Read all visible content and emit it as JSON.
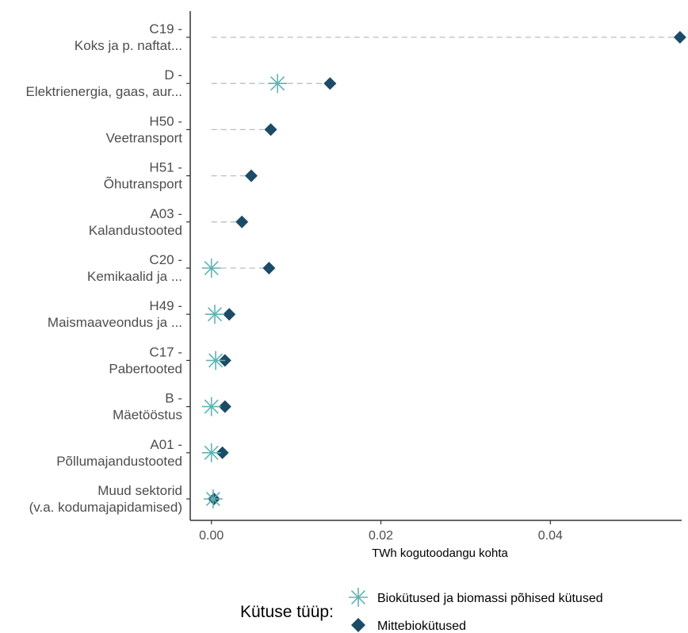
{
  "chart_data": {
    "type": "scatter",
    "xlabel": "TWh kogutoodangu kohta",
    "xlim": [
      -0.0025,
      0.0555
    ],
    "xticks": [
      0.0,
      0.02,
      0.04
    ],
    "xtick_labels": [
      "0.00",
      "0.02",
      "0.04"
    ],
    "grid": false,
    "legend_position": "bottom",
    "categories": [
      {
        "code": "C19 -",
        "name": "Koks ja p. naftat..."
      },
      {
        "code": "D -",
        "name": "Elektrienergia, gaas, aur..."
      },
      {
        "code": "H50 -",
        "name": "Veetransport"
      },
      {
        "code": "H51 -",
        "name": "Õhutransport"
      },
      {
        "code": "A03 -",
        "name": "Kalandustooted"
      },
      {
        "code": "C20 -",
        "name": "Kemikaalid ja ..."
      },
      {
        "code": "H49 -",
        "name": "Maismaaveondus ja ..."
      },
      {
        "code": "C17 -",
        "name": "Pabertooted"
      },
      {
        "code": "B -",
        "name": "Mäetööstus"
      },
      {
        "code": "A01 -",
        "name": "Põllumajandustooted"
      },
      {
        "code": "Muud sektorid",
        "name": "(v.a. kodumajapidamised)"
      }
    ],
    "legend": {
      "title": "Kütuse tüüp:",
      "entries": [
        "Biokütused ja biomassi põhised kütused",
        "Mittebiokütused"
      ]
    },
    "series": [
      {
        "name": "Biokütused ja biomassi põhised kütused",
        "marker": "asterisk",
        "color": "#5fb3b3",
        "values": [
          null,
          0.0078,
          null,
          null,
          null,
          0.0,
          0.0004,
          0.0005,
          0.0,
          0.0,
          0.0002
        ]
      },
      {
        "name": "Mittebiokütused",
        "marker": "diamond",
        "color": "#1b4b66",
        "values": [
          0.0553,
          0.014,
          0.007,
          0.0047,
          0.0036,
          0.0068,
          0.0021,
          0.0016,
          0.0016,
          0.0013,
          0.0003
        ]
      }
    ],
    "segment_color": "#bdbdbd"
  }
}
